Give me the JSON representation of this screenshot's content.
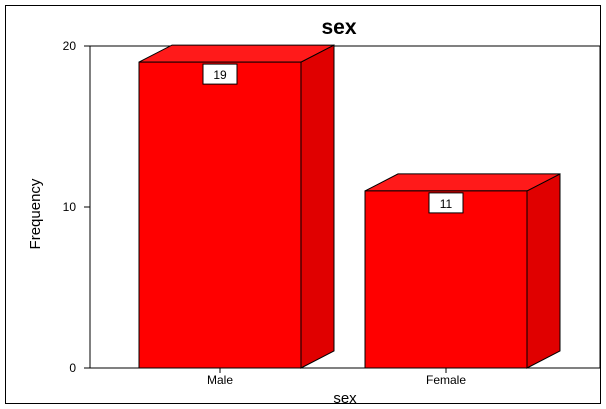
{
  "chart_data": {
    "type": "bar",
    "title": "sex",
    "xlabel": "sex",
    "ylabel": "Frequency",
    "categories": [
      "Male",
      "Female"
    ],
    "values": [
      19,
      11
    ],
    "data_labels": [
      "19",
      "11"
    ],
    "ylim": [
      0,
      20
    ],
    "yticks": [
      "0",
      "10",
      "20"
    ],
    "bar_style": "3d",
    "grid": false,
    "legend": "none",
    "colors": {
      "bar_front": "#ff0000",
      "bar_side": "#e00000",
      "bar_top": "#ff1a1a",
      "outline": "#000000",
      "label_box": "#ffffff"
    }
  }
}
